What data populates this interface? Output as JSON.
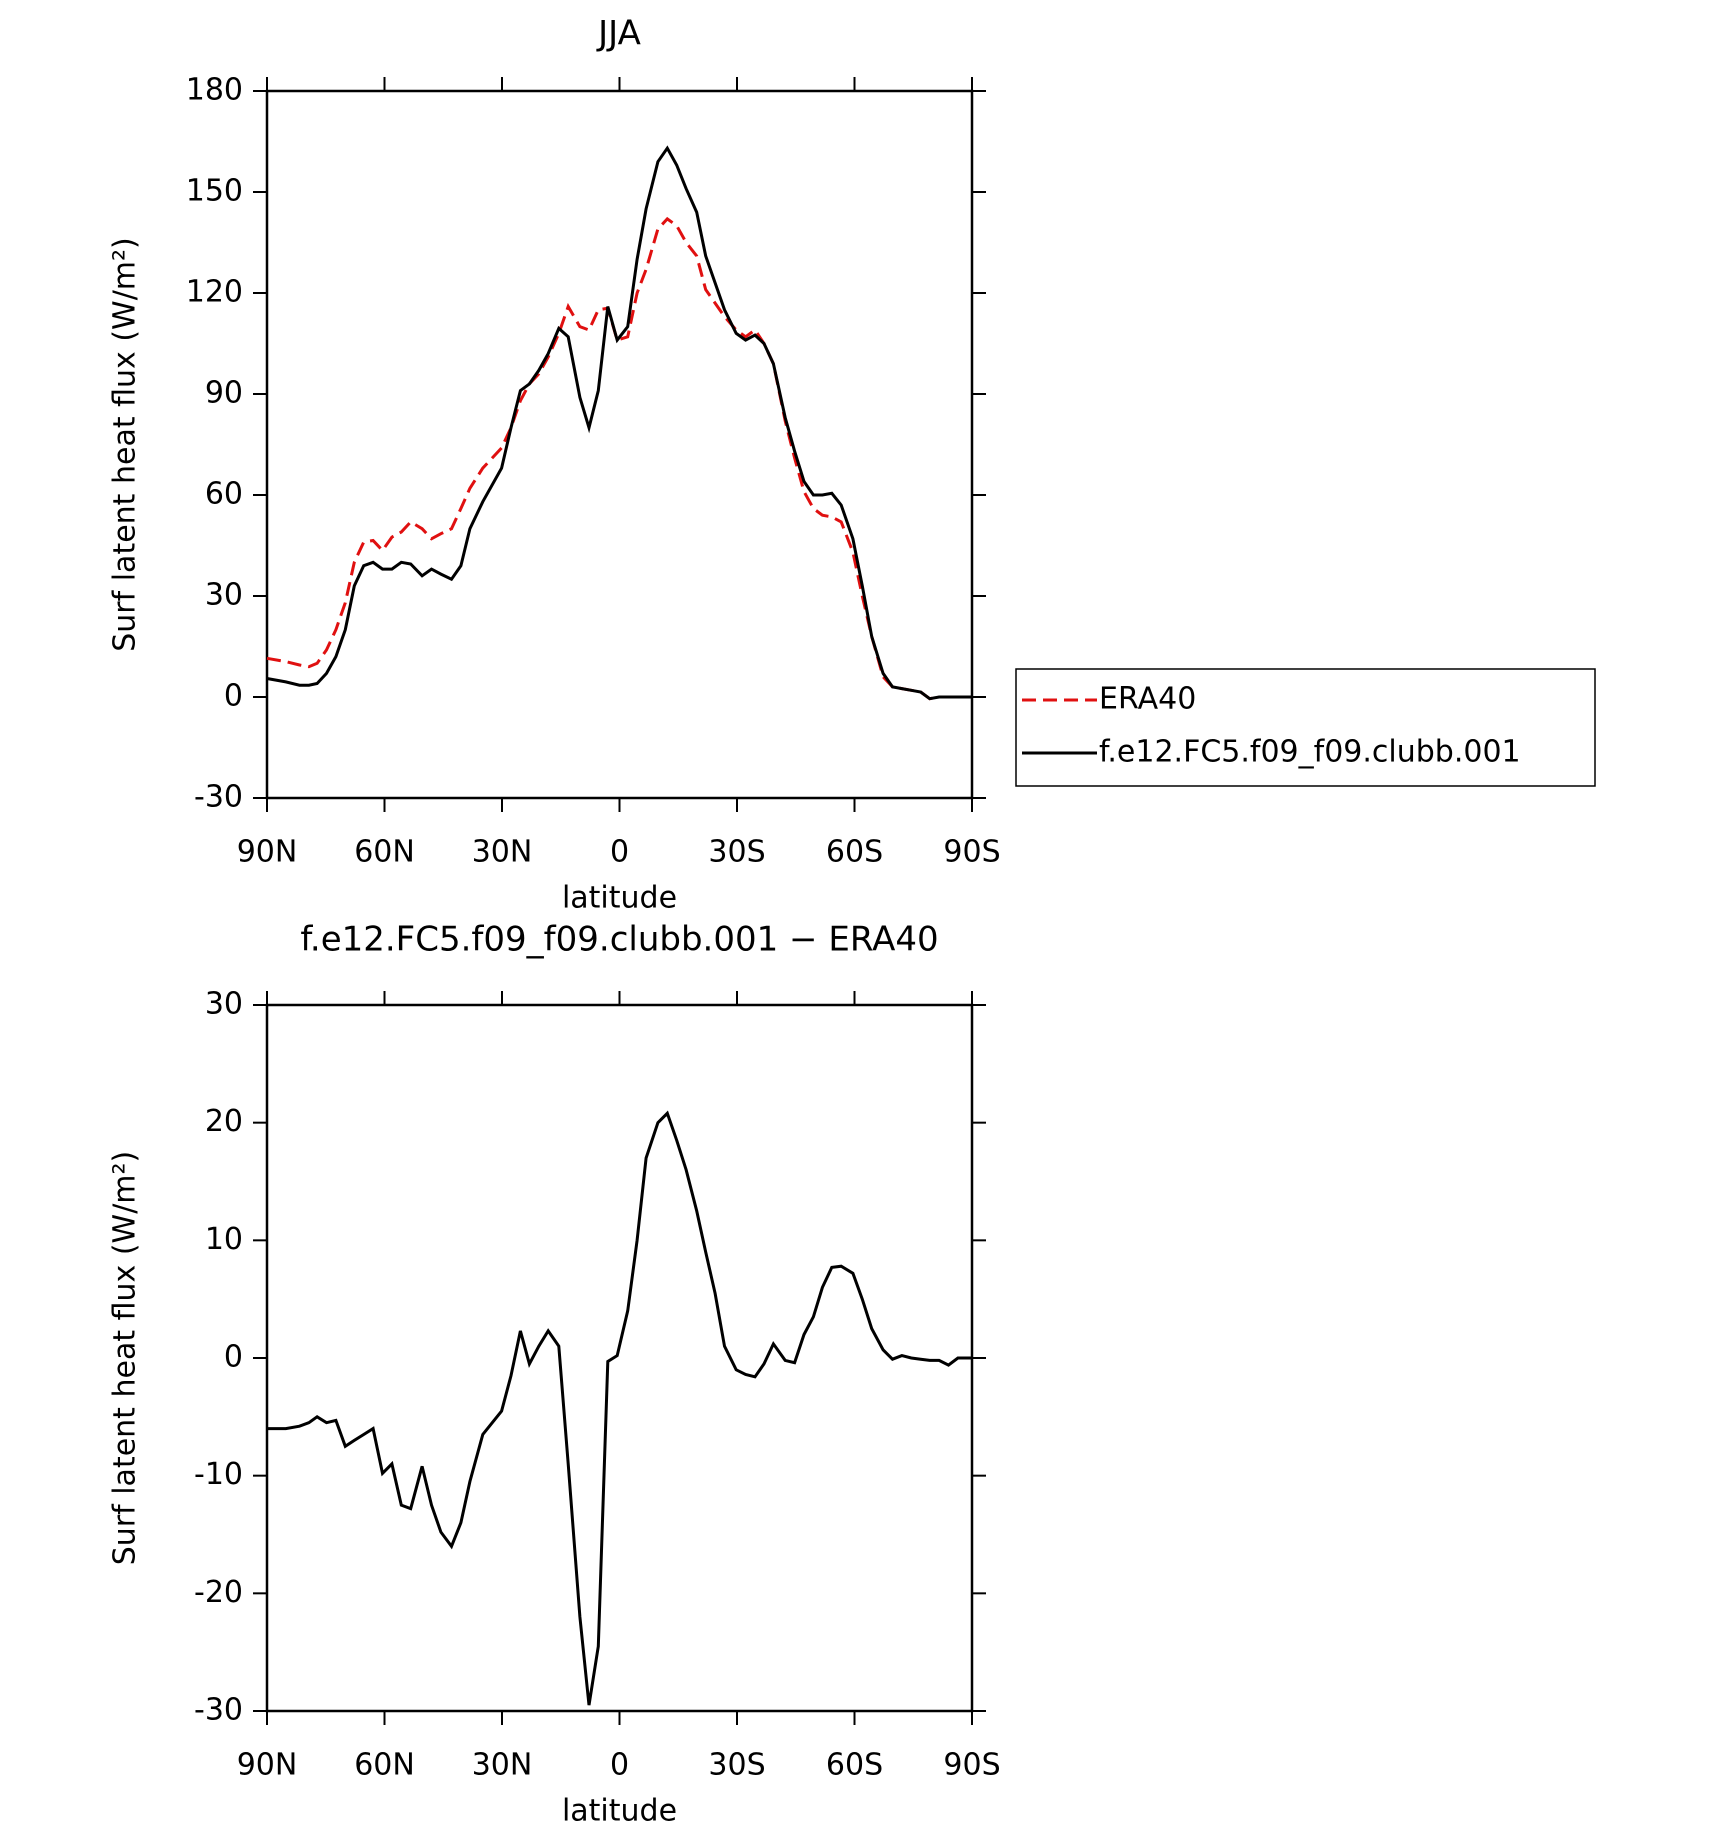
{
  "chart_data": [
    {
      "type": "line",
      "title": "JJA",
      "xlabel": "latitude",
      "ylabel": "Surf latent heat flux (W/m²)",
      "x": [
        90,
        85.2,
        81.7,
        79.3,
        77.2,
        74.8,
        72.4,
        70,
        67.7,
        65.3,
        62.9,
        60.5,
        58.1,
        55.7,
        53.3,
        50.4,
        48,
        45.6,
        42.9,
        40.5,
        38.2,
        34.9,
        30.1,
        27.7,
        25.3,
        23,
        20.6,
        18.2,
        15.5,
        13.1,
        10.1,
        7.8,
        5.4,
        3,
        0.6,
        -2.1,
        -4.5,
        -6.8,
        -9.8,
        -12.2,
        -14.6,
        -17,
        -19.7,
        -22,
        -24.4,
        -26.8,
        -29.8,
        -32.2,
        -34.6,
        -36.9,
        -39.3,
        -42.3,
        -44.7,
        -47.1,
        -49.5,
        -51.8,
        -54.2,
        -56.6,
        -59.6,
        -62,
        -64.4,
        -67.3,
        -69.7,
        -72.1,
        -74.5,
        -76.9,
        -79.2,
        -81.6,
        -84,
        -86.4,
        -90
      ],
      "series": [
        {
          "name": "ERA40",
          "color": "#e01010",
          "dash": true,
          "values": [
            11.5,
            10.5,
            9.5,
            9,
            10,
            14,
            20,
            28,
            40,
            46,
            46.5,
            43.5,
            47.5,
            49,
            52,
            50,
            47,
            48.5,
            50,
            56,
            62,
            68,
            74,
            80,
            88,
            93,
            96,
            101,
            108,
            116,
            110,
            109,
            115,
            115.5,
            106,
            107,
            120,
            127,
            139,
            142,
            140,
            135,
            131,
            121,
            117,
            113,
            109,
            107,
            109,
            105,
            99,
            82,
            71,
            61,
            56,
            54,
            53.5,
            52,
            43,
            30,
            18,
            6,
            3,
            2.5,
            2,
            1.5,
            -0.5,
            0,
            0,
            0,
            0
          ]
        },
        {
          "name": "f.e12.FC5.f09_f09.clubb.001",
          "color": "#000000",
          "dash": false,
          "values": [
            5.5,
            4.5,
            3.5,
            3.5,
            4,
            7,
            12,
            20,
            33,
            39,
            40,
            38,
            38,
            40,
            39.5,
            36,
            38,
            36.5,
            35,
            39,
            50,
            58,
            68,
            80,
            91,
            93,
            97,
            102,
            109.5,
            107,
            89,
            80,
            91,
            116,
            106,
            110,
            130,
            145,
            159,
            163,
            158,
            151,
            144,
            131,
            123,
            115,
            108,
            106,
            107.5,
            105,
            99,
            83,
            73,
            64,
            60,
            60,
            60.5,
            57,
            47,
            33,
            18,
            7,
            3,
            2.5,
            2,
            1.5,
            -0.5,
            0,
            0,
            0,
            0
          ]
        }
      ],
      "xlim": [
        90,
        -90
      ],
      "xticks": [
        {
          "value": 90,
          "label": "90N"
        },
        {
          "value": 60,
          "label": "60N"
        },
        {
          "value": 30,
          "label": "30N"
        },
        0,
        {
          "value": -30,
          "label": "30S"
        },
        {
          "value": -60,
          "label": "60S"
        },
        {
          "value": -90,
          "label": "90S"
        }
      ],
      "ylim": [
        -30,
        180
      ],
      "yticks": [
        -30,
        0,
        30,
        60,
        90,
        120,
        150,
        180
      ],
      "legend": "right"
    },
    {
      "type": "line",
      "title": "f.e12.FC5.f09_f09.clubb.001 − ERA40",
      "xlabel": "latitude",
      "ylabel": "Surf latent heat flux (W/m²)",
      "x": [
        90,
        85.2,
        81.7,
        79.3,
        77.2,
        74.8,
        72.4,
        70,
        67.7,
        65.3,
        62.9,
        60.5,
        58.1,
        55.7,
        53.3,
        50.4,
        48,
        45.6,
        42.9,
        40.5,
        38.2,
        34.9,
        30.1,
        27.7,
        25.3,
        23,
        20.6,
        18.2,
        15.5,
        13.1,
        10.1,
        7.8,
        5.4,
        3,
        0.6,
        -2.1,
        -4.5,
        -6.8,
        -9.8,
        -12.2,
        -14.6,
        -17,
        -19.7,
        -22,
        -24.4,
        -26.8,
        -29.8,
        -32.2,
        -34.6,
        -36.9,
        -39.3,
        -42.3,
        -44.7,
        -47.1,
        -49.5,
        -51.8,
        -54.2,
        -56.6,
        -59.6,
        -62,
        -64.4,
        -67.3,
        -69.7,
        -72.1,
        -74.5,
        -76.9,
        -79.2,
        -81.6,
        -84,
        -86.4,
        -90
      ],
      "color": "#000000",
      "values": [
        -6,
        -6,
        -5.8,
        -5.5,
        -5,
        -5.5,
        -5.3,
        -7.5,
        -7,
        -6.5,
        -6,
        -9.8,
        -9,
        -12.5,
        -12.8,
        -9.2,
        -12.5,
        -14.8,
        -16,
        -14,
        -10.5,
        -6.5,
        -4.5,
        -1.5,
        2.3,
        -0.5,
        1,
        2.3,
        1,
        -9,
        -22,
        -29.5,
        -24.5,
        -0.3,
        0.2,
        4,
        10,
        17,
        20,
        20.8,
        18.5,
        16,
        12.5,
        9,
        5.5,
        1,
        -1,
        -1.4,
        -1.6,
        -0.5,
        1.2,
        -0.2,
        -0.4,
        2,
        3.5,
        6,
        7.7,
        7.8,
        7.2,
        5,
        2.5,
        0.7,
        -0.1,
        0.2,
        0,
        -0.1,
        -0.2,
        -0.2,
        -0.6,
        0,
        0
      ],
      "xlim": [
        90,
        -90
      ],
      "xticks": [
        {
          "value": 90,
          "label": "90N"
        },
        {
          "value": 60,
          "label": "60N"
        },
        {
          "value": 30,
          "label": "30N"
        },
        0,
        {
          "value": -30,
          "label": "30S"
        },
        {
          "value": -60,
          "label": "60S"
        },
        {
          "value": -90,
          "label": "90S"
        }
      ],
      "ylim": [
        -30,
        30
      ],
      "yticks": [
        -30,
        -20,
        -10,
        0,
        10,
        20,
        30
      ]
    }
  ]
}
